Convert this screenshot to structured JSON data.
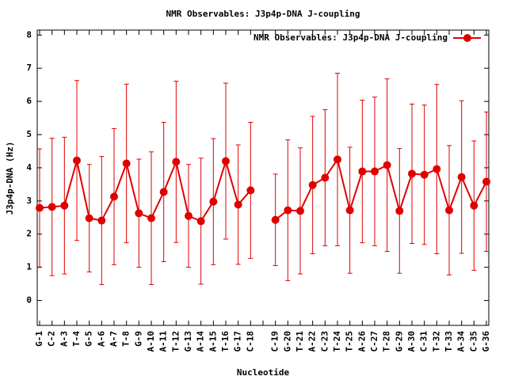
{
  "chart_data": {
    "type": "errorbar-line",
    "title": "NMR Observables: J3p4p-DNA J-coupling",
    "xlabel": "Nucleotide",
    "ylabel": "J3p4p-DNA (Hz)",
    "categories": [
      "G-1",
      "C-2",
      "A-3",
      "T-4",
      "G-5",
      "A-6",
      "A-7",
      "T-8",
      "G-9",
      "A-10",
      "A-11",
      "T-12",
      "G-13",
      "A-14",
      "A-15",
      "T-16",
      "G-17",
      "C-18",
      null,
      "C-19",
      "G-20",
      "T-21",
      "A-22",
      "C-23",
      "T-24",
      "T-25",
      "A-26",
      "C-27",
      "T-28",
      "G-29",
      "A-30",
      "C-31",
      "T-32",
      "T-33",
      "A-34",
      "C-35",
      "G-36"
    ],
    "series": [
      {
        "name": "NMR Observables: J3p4p-DNA J-coupling",
        "color": "#e00000",
        "values": [
          2.79,
          2.82,
          2.86,
          4.22,
          2.48,
          2.41,
          3.13,
          4.13,
          2.63,
          2.48,
          3.27,
          4.18,
          2.55,
          2.39,
          2.98,
          4.2,
          2.89,
          3.32,
          null,
          2.43,
          2.72,
          2.7,
          3.48,
          3.7,
          4.25,
          2.72,
          3.89,
          3.89,
          4.08,
          2.7,
          3.82,
          3.79,
          3.96,
          2.72,
          3.72,
          2.86,
          3.58
        ],
        "errors": [
          1.78,
          2.07,
          2.06,
          2.41,
          1.62,
          1.93,
          2.05,
          2.39,
          1.63,
          2.0,
          2.1,
          2.43,
          1.55,
          1.9,
          1.9,
          2.35,
          1.8,
          2.05,
          null,
          1.38,
          2.12,
          1.9,
          2.07,
          2.05,
          2.6,
          1.9,
          2.15,
          2.24,
          2.6,
          1.88,
          2.1,
          2.1,
          2.55,
          1.95,
          2.3,
          1.95,
          2.1
        ]
      }
    ],
    "ylim": [
      -0.75,
      8.15
    ],
    "yticks": [
      0,
      1,
      2,
      3,
      4,
      5,
      6,
      7,
      8
    ],
    "legend": "upper right"
  }
}
